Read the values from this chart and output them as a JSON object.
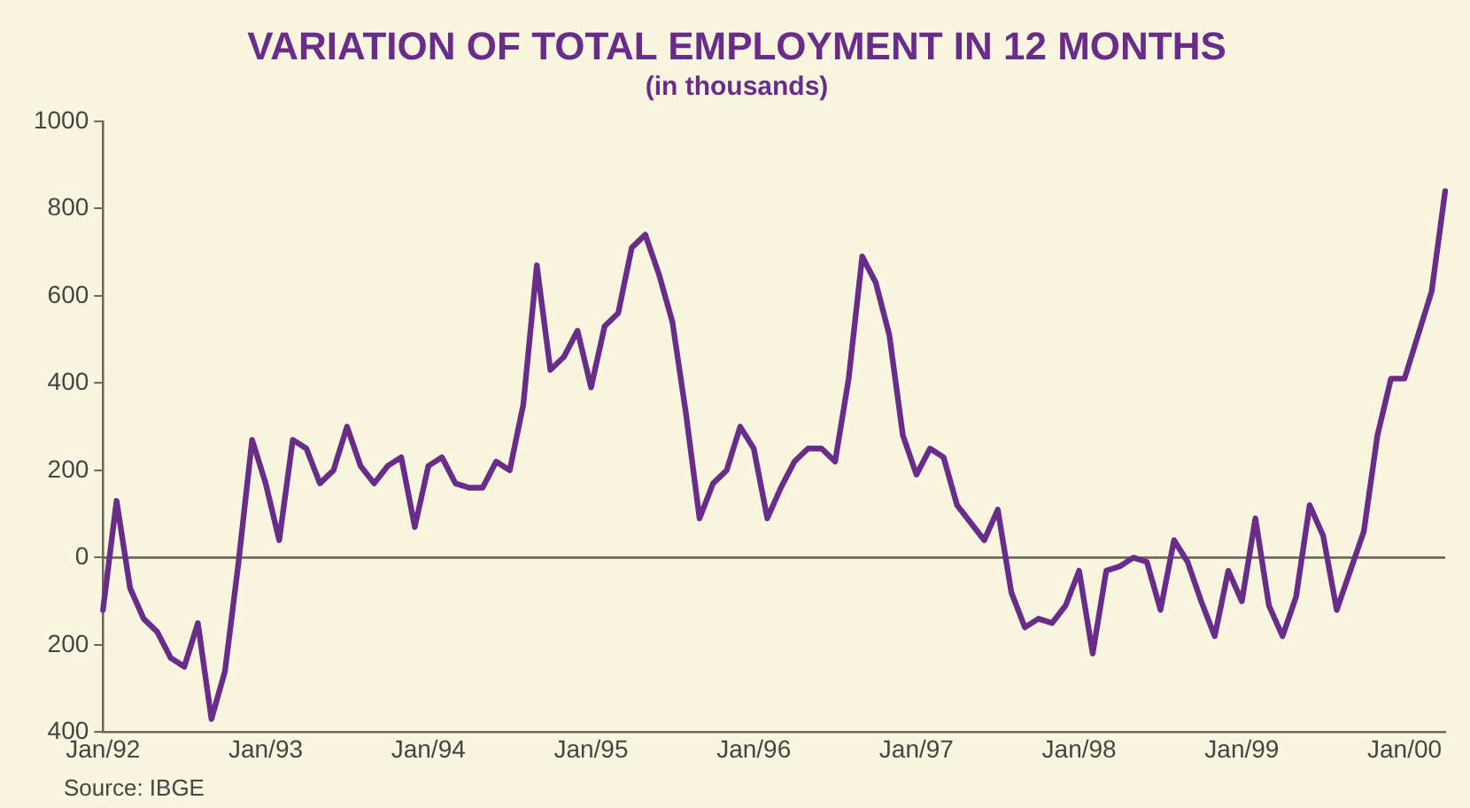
{
  "chart_data": {
    "type": "line",
    "title": "VARIATION OF TOTAL EMPLOYMENT IN 12 MONTHS",
    "subtitle": "(in thousands)",
    "annotations": [
      "Source: IBGE"
    ],
    "categories": [
      "Jan/92",
      null,
      null,
      null,
      null,
      null,
      null,
      null,
      null,
      null,
      null,
      null,
      "Jan/93",
      null,
      null,
      null,
      null,
      null,
      null,
      null,
      null,
      null,
      null,
      null,
      "Jan/94",
      null,
      null,
      null,
      null,
      null,
      null,
      null,
      null,
      null,
      null,
      null,
      "Jan/95",
      null,
      null,
      null,
      null,
      null,
      null,
      null,
      null,
      null,
      null,
      null,
      "Jan/96",
      null,
      null,
      null,
      null,
      null,
      null,
      null,
      null,
      null,
      null,
      null,
      "Jan/97",
      null,
      null,
      null,
      null,
      null,
      null,
      null,
      null,
      null,
      null,
      null,
      "Jan/98",
      null,
      null,
      null,
      null,
      null,
      null,
      null,
      null,
      null,
      null,
      null,
      "Jan/99",
      null,
      null,
      null,
      null,
      null,
      null,
      null,
      null,
      null,
      null,
      null,
      "Jan/00",
      null,
      null,
      null
    ],
    "series": [
      {
        "color": "#6a2c8a",
        "values": [
          -120,
          130,
          -70,
          -140,
          -170,
          -230,
          -250,
          -150,
          -370,
          -260,
          -10,
          270,
          170,
          40,
          270,
          250,
          170,
          200,
          300,
          210,
          170,
          210,
          230,
          70,
          210,
          230,
          170,
          160,
          160,
          220,
          200,
          350,
          670,
          430,
          460,
          520,
          390,
          530,
          560,
          710,
          740,
          650,
          540,
          330,
          90,
          170,
          200,
          300,
          250,
          90,
          160,
          220,
          250,
          250,
          220,
          410,
          690,
          630,
          510,
          280,
          190,
          250,
          230,
          120,
          80,
          40,
          110,
          -80,
          -160,
          -140,
          -150,
          -110,
          -30,
          -220,
          -30,
          -20,
          0,
          -10,
          -120,
          40,
          -10,
          -100,
          -180,
          -30,
          -100,
          90,
          -110,
          -180,
          -90,
          120,
          50,
          -120,
          -30,
          60,
          280,
          410,
          410,
          510,
          610,
          840
        ]
      }
    ],
    "ylim": [
      -400,
      1000
    ],
    "yticks": [
      {
        "value": -400,
        "label": "400"
      },
      {
        "value": -200,
        "label": "200"
      },
      0,
      200,
      400,
      600,
      800,
      1000
    ],
    "ref_lines": [
      {
        "axis": "y",
        "value": 0,
        "color": "#6e6a5a"
      }
    ],
    "grid": false,
    "legend": false,
    "marker": "none",
    "line_style": "solid"
  }
}
